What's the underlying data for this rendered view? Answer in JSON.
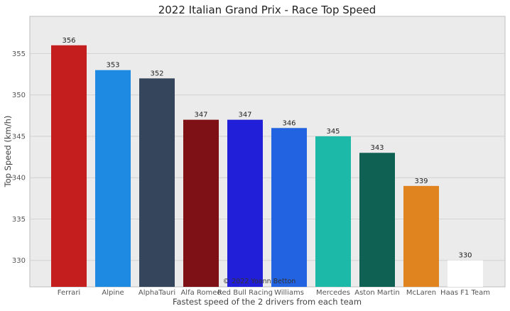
{
  "chart_data": {
    "type": "bar",
    "title": "2022 Italian Grand Prix - Race Top Speed",
    "xlabel": "Fastest speed of the 2 drivers from each team",
    "ylabel": "Top Speed (km/h)",
    "ylim": [
      326.8,
      359.5
    ],
    "yticks": [
      330,
      335,
      340,
      345,
      350,
      355
    ],
    "grid": true,
    "categories": [
      "Ferrari",
      "Alpine",
      "AlphaTauri",
      "Alfa Romeo",
      "Red Bull Racing",
      "Williams",
      "Mercedes",
      "Aston Martin",
      "McLaren",
      "Haas F1 Team"
    ],
    "values": [
      356,
      353,
      352,
      347,
      347,
      346,
      345,
      343,
      339,
      330
    ],
    "colors": [
      "#c41e1e",
      "#1f8ae2",
      "#34455c",
      "#7e1115",
      "#221fd9",
      "#2163e0",
      "#1cb9a8",
      "#0f6154",
      "#df841f",
      "#ffffff"
    ],
    "credit": "© 2022 Yoann Betton"
  }
}
